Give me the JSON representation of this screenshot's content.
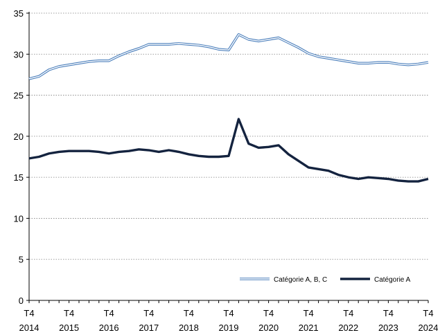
{
  "chart_data": {
    "type": "line",
    "x_tick_labels": [
      {
        "top": "T4",
        "bottom": "2014"
      },
      {
        "top": "T4",
        "bottom": "2015"
      },
      {
        "top": "T4",
        "bottom": "2016"
      },
      {
        "top": "T4",
        "bottom": "2017"
      },
      {
        "top": "T4",
        "bottom": "2018"
      },
      {
        "top": "T4",
        "bottom": "2019"
      },
      {
        "top": "T4",
        "bottom": "2020"
      },
      {
        "top": "T4",
        "bottom": "2021"
      },
      {
        "top": "T4",
        "bottom": "2022"
      },
      {
        "top": "T4",
        "bottom": "2023"
      },
      {
        "top": "T4",
        "bottom": "2024"
      }
    ],
    "x_range": [
      2014.75,
      2024.75
    ],
    "ylim": [
      0,
      35
    ],
    "y_ticks": [
      0,
      5,
      10,
      15,
      20,
      25,
      30,
      35
    ],
    "grid": "horizontal dotted",
    "legend_placement": "bottom-right",
    "series": [
      {
        "name": "Catégorie A, B, C",
        "color": "#4a7ebb",
        "style": "double-line",
        "x": [
          2014.75,
          2015.0,
          2015.25,
          2015.5,
          2015.75,
          2016.0,
          2016.25,
          2016.5,
          2016.75,
          2017.0,
          2017.25,
          2017.5,
          2017.75,
          2018.0,
          2018.25,
          2018.5,
          2018.75,
          2019.0,
          2019.25,
          2019.5,
          2019.75,
          2020.0,
          2020.25,
          2020.5,
          2020.75,
          2021.0,
          2021.25,
          2021.5,
          2021.75,
          2022.0,
          2022.25,
          2022.5,
          2022.75,
          2023.0,
          2023.25,
          2023.5,
          2023.75,
          2024.0,
          2024.25,
          2024.5,
          2024.75
        ],
        "values": [
          27.0,
          27.3,
          28.1,
          28.5,
          28.7,
          28.9,
          29.1,
          29.2,
          29.2,
          29.8,
          30.3,
          30.7,
          31.2,
          31.2,
          31.2,
          31.3,
          31.2,
          31.1,
          30.9,
          30.6,
          30.5,
          32.4,
          31.8,
          31.6,
          31.8,
          32.0,
          31.4,
          30.8,
          30.1,
          29.7,
          29.5,
          29.3,
          29.1,
          28.9,
          28.9,
          29.0,
          29.0,
          28.8,
          28.7,
          28.8,
          29.0
        ]
      },
      {
        "name": "Catégorie A",
        "color": "#14233f",
        "style": "thick-line",
        "x": [
          2014.75,
          2015.0,
          2015.25,
          2015.5,
          2015.75,
          2016.0,
          2016.25,
          2016.5,
          2016.75,
          2017.0,
          2017.25,
          2017.5,
          2017.75,
          2018.0,
          2018.25,
          2018.5,
          2018.75,
          2019.0,
          2019.25,
          2019.5,
          2019.75,
          2020.0,
          2020.25,
          2020.5,
          2020.75,
          2021.0,
          2021.25,
          2021.5,
          2021.75,
          2022.0,
          2022.25,
          2022.5,
          2022.75,
          2023.0,
          2023.25,
          2023.5,
          2023.75,
          2024.0,
          2024.25,
          2024.5,
          2024.75
        ],
        "values": [
          17.3,
          17.5,
          17.9,
          18.1,
          18.2,
          18.2,
          18.2,
          18.1,
          17.9,
          18.1,
          18.2,
          18.4,
          18.3,
          18.1,
          18.3,
          18.1,
          17.8,
          17.6,
          17.5,
          17.5,
          17.6,
          22.1,
          19.1,
          18.6,
          18.7,
          18.9,
          17.8,
          17.0,
          16.2,
          16.0,
          15.8,
          15.3,
          15.0,
          14.8,
          15.0,
          14.9,
          14.8,
          14.6,
          14.5,
          14.5,
          14.8
        ]
      }
    ]
  }
}
